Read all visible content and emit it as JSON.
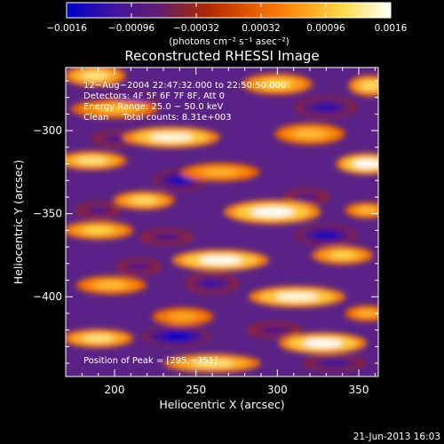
{
  "chart_data": {
    "type": "heatmap",
    "title": "Reconstructed RHESSI Image",
    "xlabel": "Heliocentric X (arcsec)",
    "ylabel": "Heliocentric Y (arcsec)",
    "xlim": [
      170,
      362
    ],
    "ylim": [
      -448,
      -262
    ],
    "x_ticks": [
      200,
      250,
      300,
      350
    ],
    "y_ticks": [
      -300,
      -350,
      -400
    ],
    "y_tick_labels": [
      "−300",
      "−350",
      "−400"
    ],
    "colorbar": {
      "range": [
        -0.0016,
        0.0016
      ],
      "ticks": [
        -0.0016,
        -0.00096,
        -0.00032,
        0.00032,
        0.00096,
        0.0016
      ],
      "tick_labels": [
        "−0.0016",
        "−0.00096",
        "−0.00032",
        "0.00032",
        "0.00096",
        "0.0016"
      ],
      "units": "(photons cm⁻² s⁻¹ asec⁻²)",
      "colors": [
        "#0000c8",
        "#3c14a0",
        "#641e6e",
        "#aa2800",
        "#e65a00",
        "#ff9614",
        "#ffdc50",
        "#ffffff"
      ]
    },
    "annotations": [
      "12−Aug−2004 22:47:32.000 to 22:50:50.000",
      "Detectors: 4F 5F 6F 7F 8F, Att 0",
      "Energy Range: 25.0 − 50.0 keV",
      "Clean     Total counts: 8.31e+003",
      "Position of Peak = [295,−351]"
    ],
    "peak": {
      "x": 295,
      "y": -351
    },
    "bright_bands": [
      {
        "cx": 188,
        "cy": -267,
        "sx": 14,
        "sy": 4,
        "v": 0.8
      },
      {
        "cx": 300,
        "cy": -272,
        "sx": 16,
        "sy": 4,
        "v": 0.7
      },
      {
        "cx": 357,
        "cy": -273,
        "sx": 10,
        "sy": 4,
        "v": 0.75
      },
      {
        "cx": 200,
        "cy": -287,
        "sx": 20,
        "sy": 3.5,
        "v": 0.6
      },
      {
        "cx": 235,
        "cy": -304,
        "sx": 22,
        "sy": 4,
        "v": 0.95
      },
      {
        "cx": 320,
        "cy": -302,
        "sx": 16,
        "sy": 4,
        "v": 0.6
      },
      {
        "cx": 186,
        "cy": -318,
        "sx": 16,
        "sy": 3.5,
        "v": 0.8
      },
      {
        "cx": 265,
        "cy": -325,
        "sx": 18,
        "sy": 3.5,
        "v": 0.55
      },
      {
        "cx": 355,
        "cy": -320,
        "sx": 14,
        "sy": 4,
        "v": 1.0
      },
      {
        "cx": 218,
        "cy": -342,
        "sx": 14,
        "sy": 3.5,
        "v": 0.75
      },
      {
        "cx": 297,
        "cy": -349,
        "sx": 22,
        "sy": 4.5,
        "v": 1.0
      },
      {
        "cx": 355,
        "cy": -348,
        "sx": 10,
        "sy": 3,
        "v": 0.6
      },
      {
        "cx": 190,
        "cy": -360,
        "sx": 16,
        "sy": 3.5,
        "v": 0.7
      },
      {
        "cx": 265,
        "cy": -378,
        "sx": 22,
        "sy": 4,
        "v": 1.0
      },
      {
        "cx": 340,
        "cy": -375,
        "sx": 14,
        "sy": 3.5,
        "v": 0.7
      },
      {
        "cx": 198,
        "cy": -393,
        "sx": 16,
        "sy": 3.5,
        "v": 0.6
      },
      {
        "cx": 312,
        "cy": -400,
        "sx": 22,
        "sy": 4,
        "v": 0.95
      },
      {
        "cx": 242,
        "cy": -412,
        "sx": 14,
        "sy": 3.5,
        "v": 0.5
      },
      {
        "cx": 355,
        "cy": -410,
        "sx": 10,
        "sy": 3,
        "v": 0.55
      },
      {
        "cx": 190,
        "cy": -425,
        "sx": 16,
        "sy": 3.5,
        "v": 0.8
      },
      {
        "cx": 328,
        "cy": -428,
        "sx": 20,
        "sy": 4,
        "v": 1.0
      },
      {
        "cx": 260,
        "cy": -440,
        "sx": 22,
        "sy": 3.5,
        "v": 0.8
      }
    ],
    "dark_spots": [
      {
        "cx": 210,
        "cy": -282,
        "sx": 12,
        "sy": 4,
        "v": -1.0
      },
      {
        "cx": 330,
        "cy": -286,
        "sx": 14,
        "sy": 4,
        "v": -0.8
      },
      {
        "cx": 200,
        "cy": -305,
        "sx": 10,
        "sy": 3,
        "v": -0.6
      },
      {
        "cx": 240,
        "cy": -330,
        "sx": 12,
        "sy": 4,
        "v": -0.9
      },
      {
        "cx": 318,
        "cy": -340,
        "sx": 10,
        "sy": 3,
        "v": -0.6
      },
      {
        "cx": 190,
        "cy": -348,
        "sx": 10,
        "sy": 3,
        "v": -0.6
      },
      {
        "cx": 330,
        "cy": -363,
        "sx": 14,
        "sy": 4,
        "v": -0.9
      },
      {
        "cx": 232,
        "cy": -364,
        "sx": 12,
        "sy": 3,
        "v": -0.6
      },
      {
        "cx": 215,
        "cy": -382,
        "sx": 10,
        "sy": 3,
        "v": -0.6
      },
      {
        "cx": 260,
        "cy": -392,
        "sx": 12,
        "sy": 4,
        "v": -0.7
      },
      {
        "cx": 238,
        "cy": -424,
        "sx": 16,
        "sy": 4,
        "v": -1.0
      },
      {
        "cx": 298,
        "cy": -420,
        "sx": 12,
        "sy": 3,
        "v": -0.6
      },
      {
        "cx": 335,
        "cy": -440,
        "sx": 14,
        "sy": 3,
        "v": -0.7
      }
    ]
  },
  "footer": {
    "timestamp": "21-Jun-2013 16:03"
  }
}
